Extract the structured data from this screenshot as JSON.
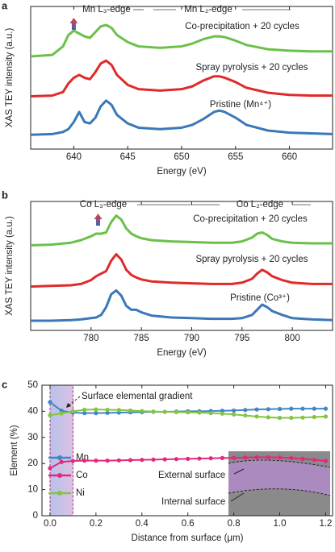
{
  "chart_data": [
    {
      "type": "line",
      "label": "a",
      "ylabel": "XAS TEY intensity (a.u.)",
      "xlabel": "Energy (eV)",
      "annotations": [
        "Mn L₃-edge",
        "Mn L₂-edge"
      ],
      "xlim": [
        636,
        664
      ],
      "xticks": [
        640,
        645,
        650,
        655,
        660
      ],
      "ylim": [
        0,
        10
      ],
      "x": [
        636,
        638,
        639,
        639.5,
        640,
        640.5,
        641,
        641.5,
        642,
        642.5,
        643,
        643.5,
        644,
        645,
        646,
        648,
        650,
        651,
        652,
        653,
        653.5,
        654,
        655,
        656,
        658,
        660,
        662,
        664
      ],
      "series": [
        {
          "name": "Co-precipitation + 20 cycles",
          "color": "#6cc04a",
          "values": [
            6.5,
            6.6,
            7.2,
            8.0,
            8.3,
            8.1,
            7.9,
            7.8,
            8.2,
            8.6,
            8.7,
            8.5,
            8.0,
            7.5,
            7.2,
            7.1,
            7.2,
            7.4,
            7.7,
            7.9,
            7.9,
            7.85,
            7.6,
            7.3,
            7.0,
            6.9,
            6.85,
            6.85
          ]
        },
        {
          "name": "Spray pyrolysis + 20 cycles",
          "color": "#e02a2a",
          "values": [
            3.7,
            3.75,
            4.0,
            4.6,
            5.0,
            5.2,
            5.0,
            4.9,
            5.4,
            6.0,
            6.2,
            5.9,
            5.2,
            4.5,
            4.2,
            4.1,
            4.2,
            4.4,
            4.8,
            5.1,
            5.1,
            5.0,
            4.7,
            4.3,
            3.95,
            3.8,
            3.75,
            3.75
          ]
        },
        {
          "name": "Pristine (Mn⁴⁺)",
          "color": "#3a78b8",
          "values": [
            1.0,
            1.05,
            1.2,
            1.4,
            1.9,
            2.6,
            1.9,
            1.8,
            2.2,
            3.0,
            3.4,
            3.1,
            2.4,
            1.8,
            1.5,
            1.4,
            1.5,
            1.7,
            2.1,
            2.6,
            2.7,
            2.6,
            2.2,
            1.7,
            1.3,
            1.15,
            1.1,
            1.05
          ]
        }
      ]
    },
    {
      "type": "line",
      "label": "b",
      "ylabel": "XAS TEY intensity (a.u.)",
      "xlabel": "Energy (eV)",
      "annotations": [
        "Co L₃-edge",
        "Co L₂-edge"
      ],
      "xlim": [
        774,
        804
      ],
      "xticks": [
        780,
        785,
        790,
        795,
        800
      ],
      "ylim": [
        0,
        10
      ],
      "x": [
        774,
        776,
        778,
        779,
        780,
        780.5,
        781,
        781.5,
        782,
        782.5,
        783,
        783.5,
        784,
        784.5,
        785,
        786,
        788,
        790,
        792,
        794,
        795,
        796,
        796.5,
        797,
        797.5,
        798,
        799,
        800,
        802,
        804
      ],
      "series": [
        {
          "name": "Co-precipitation + 20 cycles",
          "color": "#6cc04a",
          "values": [
            6.6,
            6.65,
            6.8,
            7.0,
            7.3,
            7.5,
            7.5,
            7.6,
            8.4,
            8.9,
            8.6,
            7.9,
            7.5,
            7.3,
            7.15,
            7.0,
            6.9,
            6.85,
            6.8,
            6.8,
            6.9,
            7.2,
            7.5,
            7.6,
            7.4,
            7.1,
            6.9,
            6.8,
            6.75,
            6.75
          ]
        },
        {
          "name": "Spray pyrolysis + 20 cycles",
          "color": "#e02a2a",
          "values": [
            3.4,
            3.45,
            3.5,
            3.6,
            3.9,
            4.2,
            4.4,
            4.6,
            5.4,
            5.9,
            5.5,
            4.7,
            4.3,
            4.1,
            3.95,
            3.8,
            3.7,
            3.65,
            3.6,
            3.6,
            3.7,
            4.0,
            4.4,
            4.7,
            4.5,
            4.2,
            3.9,
            3.7,
            3.6,
            3.6
          ]
        },
        {
          "name": "Pristine (Co³⁺)",
          "color": "#3a78b8",
          "values": [
            0.75,
            0.75,
            0.8,
            0.85,
            0.95,
            1.0,
            1.2,
            1.8,
            2.8,
            3.1,
            2.7,
            1.9,
            1.6,
            1.6,
            1.4,
            1.15,
            1.0,
            0.95,
            0.9,
            0.9,
            0.95,
            1.2,
            1.6,
            2.0,
            1.8,
            1.5,
            1.2,
            0.95,
            0.85,
            0.8
          ]
        }
      ]
    },
    {
      "type": "scatter-line",
      "label": "c",
      "ylabel": "Element (%)",
      "xlabel": "Distance from surface (μm)",
      "annotations": [
        "Surface elemental gradient",
        "External surface",
        "Internal surface"
      ],
      "xlim": [
        -0.035,
        1.23
      ],
      "xticks": [
        {
          "value": 0,
          "label": "0.0"
        },
        0.2,
        0.4,
        0.6,
        0.8,
        {
          "value": 1,
          "label": "1.0"
        },
        1.2
      ],
      "ylim": [
        0,
        50
      ],
      "yticks": [
        0,
        10,
        20,
        30,
        40,
        50
      ],
      "x": [
        0,
        0.05,
        0.1,
        0.15,
        0.2,
        0.25,
        0.3,
        0.35,
        0.4,
        0.45,
        0.5,
        0.55,
        0.6,
        0.65,
        0.7,
        0.75,
        0.8,
        0.85,
        0.9,
        0.95,
        1.0,
        1.05,
        1.1,
        1.15,
        1.2
      ],
      "series": [
        {
          "name": "Mn",
          "color": "#3f86c8",
          "values": [
            43.5,
            40.2,
            39.5,
            39.3,
            39.3,
            39.4,
            39.5,
            39.6,
            39.7,
            39.8,
            39.8,
            39.9,
            40.0,
            40.0,
            40.1,
            40.2,
            40.3,
            40.5,
            40.7,
            40.8,
            40.9,
            41.0,
            41.0,
            41.0,
            41.0
          ]
        },
        {
          "name": "Co",
          "color": "#e2287f",
          "values": [
            18.2,
            20.6,
            21.0,
            21.1,
            21.1,
            21.1,
            21.2,
            21.3,
            21.4,
            21.5,
            21.6,
            21.7,
            21.8,
            21.9,
            22.0,
            22.1,
            22.2,
            22.3,
            22.4,
            22.4,
            22.3,
            22.1,
            21.8,
            21.4,
            21.0
          ]
        },
        {
          "name": "Ni",
          "color": "#84c441",
          "values": [
            38.5,
            39.2,
            40.0,
            40.6,
            40.7,
            40.6,
            40.5,
            40.3,
            40.1,
            39.9,
            39.8,
            39.7,
            39.6,
            39.5,
            39.3,
            39.1,
            38.8,
            38.4,
            38.0,
            37.7,
            37.5,
            37.5,
            37.6,
            37.8,
            38.0
          ]
        }
      ]
    }
  ]
}
